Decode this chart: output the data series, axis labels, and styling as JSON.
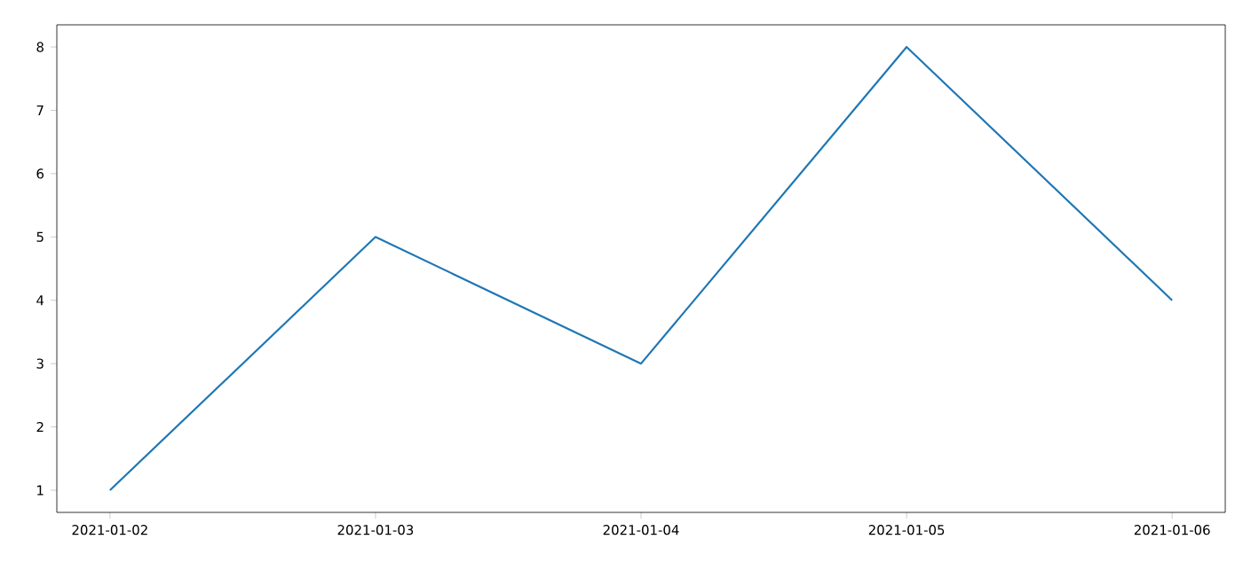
{
  "chart_data": {
    "type": "line",
    "x": [
      "2021-01-02",
      "2021-01-03",
      "2021-01-04",
      "2021-01-05",
      "2021-01-06"
    ],
    "series": [
      {
        "color": "#1f77b4",
        "values": [
          1,
          5,
          3,
          8,
          4
        ]
      }
    ],
    "xlim": [
      "2021-01-01T19:12",
      "2021-01-06T04:48"
    ],
    "ylim": [
      0.65,
      8.35
    ],
    "xticks": [
      "2021-01-02",
      "2021-01-03",
      "2021-01-04",
      "2021-01-05",
      "2021-01-06"
    ],
    "yticks": [
      1,
      2,
      3,
      4,
      5,
      6,
      7,
      8
    ],
    "grid": false,
    "marker": "none",
    "line_style": "solid"
  }
}
